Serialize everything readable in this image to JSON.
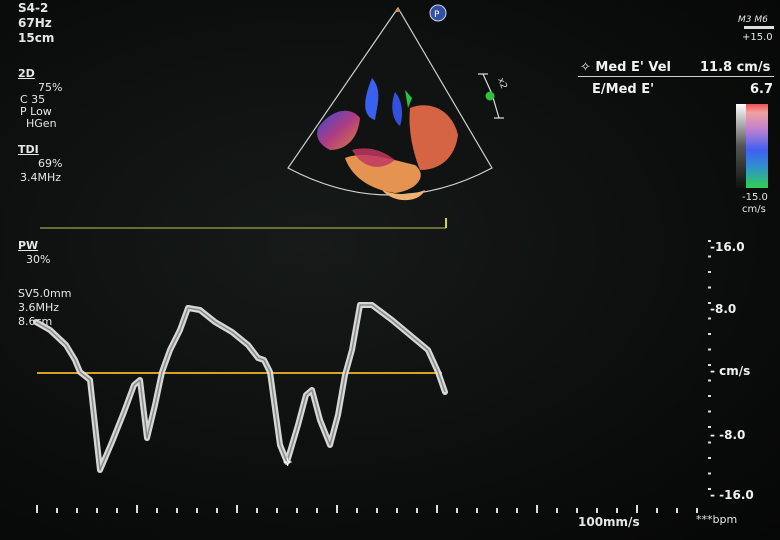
{
  "probe": {
    "name": "S4-2",
    "frame_rate": "67Hz",
    "depth": "15cm"
  },
  "mode_2d": {
    "title": "2D",
    "gain": "75%",
    "compress": "C 35",
    "power": "P Low",
    "frequency": "HGen"
  },
  "tdi": {
    "title": "TDI",
    "gain": "69%",
    "frequency": "3.4MHz"
  },
  "pw": {
    "title": "PW",
    "gain": "30%",
    "sample_volume": "SV5.0mm",
    "frequency": "3.6MHz",
    "depth": "8.6cm"
  },
  "color_bar": {
    "mode": "M3 M6",
    "top": "+15.0",
    "bottom": "-15.0",
    "unit": "cm/s"
  },
  "measurements": [
    {
      "label": "✧ Med E' Vel",
      "value": "11.8 cm/s"
    },
    {
      "label": "E/Med E'",
      "value": "6.7"
    }
  ],
  "velocity_scale": {
    "labels": [
      "-16.0",
      "-8.0",
      "- cm/s",
      "- -8.0",
      "- -16.0"
    ]
  },
  "footer": {
    "sweep_speed": "100mm/s",
    "heart_rate": "***bpm"
  },
  "markers": {
    "probe_orientation": "P",
    "zoom": "x2"
  },
  "colors": {
    "baseline": "#d8a21e",
    "trace": "#e8e8e8",
    "sector_outline": "#cfcfcf",
    "cursor": "#b8c94a"
  },
  "spectral_trace": [
    [
      36,
      322
    ],
    [
      50,
      330
    ],
    [
      66,
      345
    ],
    [
      75,
      360
    ],
    [
      80,
      372
    ],
    [
      90,
      380
    ],
    [
      100,
      470
    ],
    [
      112,
      442
    ],
    [
      124,
      412
    ],
    [
      134,
      385
    ],
    [
      140,
      380
    ],
    [
      147,
      438
    ],
    [
      155,
      405
    ],
    [
      162,
      372
    ],
    [
      170,
      350
    ],
    [
      180,
      330
    ],
    [
      188,
      308
    ],
    [
      200,
      310
    ],
    [
      215,
      322
    ],
    [
      232,
      332
    ],
    [
      248,
      345
    ],
    [
      258,
      358
    ],
    [
      264,
      360
    ],
    [
      270,
      372
    ],
    [
      280,
      445
    ],
    [
      287,
      462
    ],
    [
      298,
      425
    ],
    [
      306,
      395
    ],
    [
      312,
      390
    ],
    [
      320,
      420
    ],
    [
      330,
      445
    ],
    [
      338,
      415
    ],
    [
      345,
      375
    ],
    [
      352,
      350
    ],
    [
      360,
      305
    ],
    [
      372,
      305
    ],
    [
      392,
      320
    ],
    [
      410,
      335
    ],
    [
      428,
      350
    ],
    [
      438,
      372
    ],
    [
      445,
      392
    ]
  ]
}
